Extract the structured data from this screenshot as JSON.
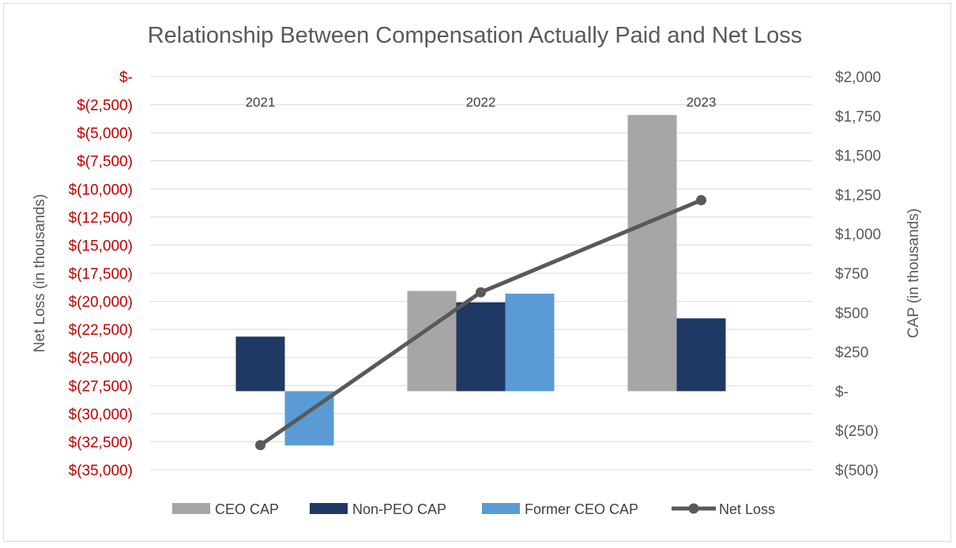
{
  "chart_data": {
    "type": "bar",
    "title": "Relationship Between Compensation Actually Paid and Net Loss",
    "categories": [
      "2021",
      "2022",
      "2023"
    ],
    "series": [
      {
        "name": "CEO CAP",
        "axis": "right",
        "color": "#a6a6a6",
        "values": [
          null,
          637,
          1756
        ]
      },
      {
        "name": "Non-PEO CAP",
        "axis": "right",
        "color": "#203864",
        "values": [
          347,
          565,
          463
        ]
      },
      {
        "name": "Former CEO CAP",
        "axis": "right",
        "color": "#5b9bd5",
        "values": [
          -345,
          620,
          null
        ]
      },
      {
        "name": "Net Loss",
        "type": "line",
        "axis": "left",
        "color": "#595959",
        "values": [
          -32800,
          -19200,
          -11000
        ]
      }
    ],
    "left_axis": {
      "label": "Net Loss (in thousands)",
      "min": -35000,
      "max": 0,
      "ticks": [
        "$-",
        "$(2,500)",
        "$(5,000)",
        "$(7,500)",
        "$(10,000)",
        "$(12,500)",
        "$(15,000)",
        "$(17,500)",
        "$(20,000)",
        "$(22,500)",
        "$(25,000)",
        "$(27,500)",
        "$(30,000)",
        "$(32,500)",
        "$(35,000)"
      ],
      "color": "#c00000"
    },
    "right_axis": {
      "label": "CAP (in thousands)",
      "min": -500,
      "max": 2000,
      "ticks": [
        "$2,000",
        "$1,750",
        "$1,500",
        "$1,250",
        "$1,000",
        "$750",
        "$500",
        "$250",
        "$-",
        "$(250)",
        "$(500)"
      ]
    },
    "legend": {
      "position": "bottom",
      "entries": [
        "CEO CAP",
        "Non-PEO CAP",
        "Former CEO CAP",
        "Net Loss"
      ]
    },
    "grid": true
  }
}
